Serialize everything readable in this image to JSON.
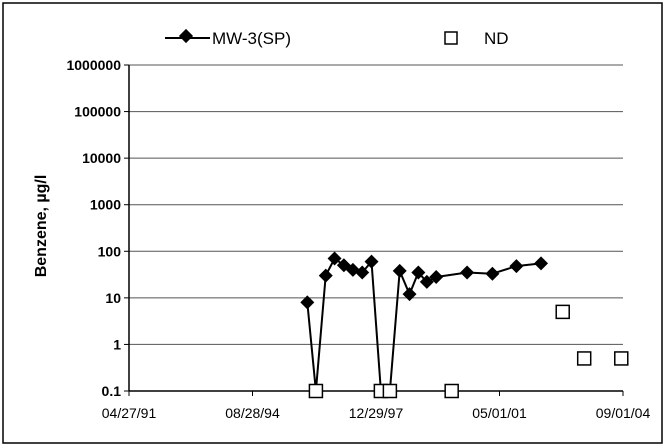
{
  "chart_data": {
    "type": "scatter",
    "title": "",
    "xlabel": "",
    "ylabel": "Benzene, µg/l",
    "y_scale": "log",
    "ylim": [
      0.1,
      1000000
    ],
    "xlim": [
      "04/27/91",
      "09/01/04"
    ],
    "x_ticks": [
      "04/27/91",
      "08/28/94",
      "12/29/97",
      "05/01/01",
      "09/01/04"
    ],
    "y_ticks": [
      "0.1",
      "1",
      "10",
      "100",
      "1000",
      "10000",
      "100000",
      "1000000"
    ],
    "grid": "horizontal",
    "legend_position": "top",
    "series": [
      {
        "name": "MW-3(SP)",
        "style": "line-diamond",
        "color": "#000000",
        "points": [
          {
            "x": "1996-02-20",
            "y": 8
          },
          {
            "x": "1996-05-15",
            "y": 0.1
          },
          {
            "x": "1996-08-20",
            "y": 30
          },
          {
            "x": "1996-11-15",
            "y": 70
          },
          {
            "x": "1997-02-15",
            "y": 50
          },
          {
            "x": "1997-05-15",
            "y": 40
          },
          {
            "x": "1997-08-15",
            "y": 35
          },
          {
            "x": "1997-11-15",
            "y": 60
          },
          {
            "x": "1998-02-15",
            "y": 0.1
          },
          {
            "x": "1998-05-15",
            "y": 0.1
          },
          {
            "x": "1998-08-20",
            "y": 38
          },
          {
            "x": "1998-11-25",
            "y": 12
          },
          {
            "x": "1999-02-20",
            "y": 35
          },
          {
            "x": "1999-05-15",
            "y": 22
          },
          {
            "x": "1999-08-15",
            "y": 28
          },
          {
            "x": "2000-06-15",
            "y": 35
          },
          {
            "x": "2001-02-20",
            "y": 33
          },
          {
            "x": "2001-10-15",
            "y": 48
          },
          {
            "x": "2002-06-15",
            "y": 55
          }
        ]
      },
      {
        "name": "ND",
        "style": "open-square",
        "color": "#000000",
        "points": [
          {
            "x": "1996-05-15",
            "y": 0.1
          },
          {
            "x": "1998-02-15",
            "y": 0.1
          },
          {
            "x": "1998-05-15",
            "y": 0.1
          },
          {
            "x": "2000-01-15",
            "y": 0.1
          },
          {
            "x": "2003-01-15",
            "y": 5
          },
          {
            "x": "2003-08-15",
            "y": 0.5
          },
          {
            "x": "2004-08-15",
            "y": 0.5
          }
        ]
      }
    ]
  }
}
